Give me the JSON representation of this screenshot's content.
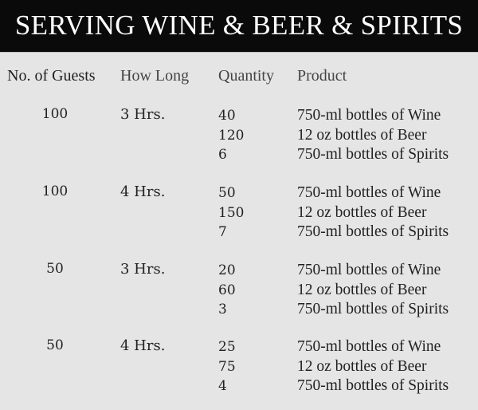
{
  "title": "SERVING WINE & BEER & SPIRITS",
  "columns": [
    "No. of Guests",
    "How Long",
    "Quantity",
    "Product"
  ],
  "rows": [
    {
      "guests": "100",
      "how_long": "3 Hrs.",
      "items": [
        {
          "quantity": "40",
          "product": "750-ml bottles of Wine"
        },
        {
          "quantity": "120",
          "product": "12 oz bottles of Beer"
        },
        {
          "quantity": "6",
          "product": "750-ml bottles of Spirits"
        }
      ]
    },
    {
      "guests": "100",
      "how_long": "4 Hrs.",
      "items": [
        {
          "quantity": "50",
          "product": "750-ml bottles of Wine"
        },
        {
          "quantity": "150",
          "product": "12 oz bottles of Beer"
        },
        {
          "quantity": "7",
          "product": "750-ml bottles of Spirits"
        }
      ]
    },
    {
      "guests": "50",
      "how_long": "3 Hrs.",
      "items": [
        {
          "quantity": "20",
          "product": "750-ml bottles of Wine"
        },
        {
          "quantity": "60",
          "product": "12 oz bottles of Beer"
        },
        {
          "quantity": "3",
          "product": "750-ml bottles of Spirits"
        }
      ]
    },
    {
      "guests": "50",
      "how_long": "4 Hrs.",
      "items": [
        {
          "quantity": "25",
          "product": "750-ml bottles of Wine"
        },
        {
          "quantity": "75",
          "product": "12 oz bottles of Beer"
        },
        {
          "quantity": "4",
          "product": "750-ml bottles of Spirits"
        }
      ]
    }
  ],
  "colors": {
    "header_bg": "#0a0a0a",
    "body_bg": "#e6e5e6",
    "text": "#222222"
  }
}
